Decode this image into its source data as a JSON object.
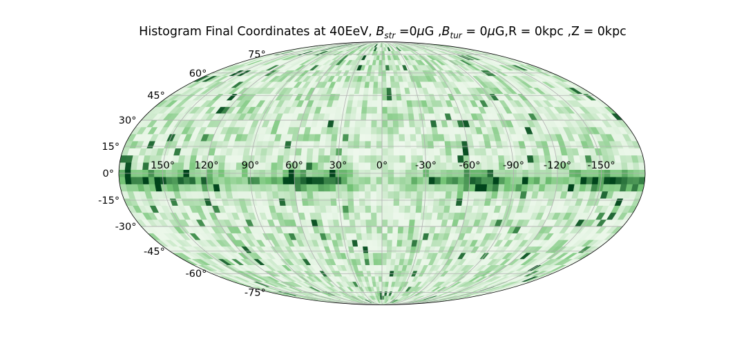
{
  "chart_data": {
    "type": "heatmap",
    "projection": "mollweide",
    "title": {
      "prefix": "Histogram Final Coordinates at 40EeV, ",
      "b_str_symbol": "B",
      "b_str_sub": "str",
      "b_str_value": " =0",
      "mu1": "μ",
      "unit1": "G ,",
      "b_tur_symbol": "B",
      "b_tur_sub": "tur",
      "b_tur_value": " = 0",
      "mu2": "μ",
      "suffix": "G,R = 0kpc ,Z = 0kpc"
    },
    "longitude_ticks": [
      150,
      120,
      90,
      60,
      30,
      0,
      -30,
      -60,
      -90,
      -120,
      -150
    ],
    "longitude_tick_labels": [
      "150°",
      "120°",
      "90°",
      "60°",
      "30°",
      "0°",
      "-30°",
      "-60°",
      "-90°",
      "-120°",
      "-150°"
    ],
    "latitude_ticks": [
      75,
      60,
      45,
      30,
      15,
      0,
      -15,
      -30,
      -45,
      -60,
      -75
    ],
    "latitude_tick_labels": [
      "75°",
      "60°",
      "45°",
      "30°",
      "15°",
      "0°",
      "-15°",
      "-30°",
      "-45°",
      "-60°",
      "-75°"
    ],
    "xlim": [
      180,
      -180
    ],
    "ylim": [
      -90,
      90
    ],
    "grid": true,
    "colormap": "Greens",
    "bins": {
      "longitude": 90,
      "latitude": 45
    },
    "density_model": {
      "band_center_latitude": -4,
      "band_width_degrees": 5,
      "band_peaks_longitude": [
        -65,
        45,
        -160,
        150
      ]
    },
    "colors": {
      "low": "#f7fcf5",
      "mid": "#74c476",
      "high": "#00441b",
      "grid": "#b0b0b0",
      "outline": "#000000"
    }
  }
}
